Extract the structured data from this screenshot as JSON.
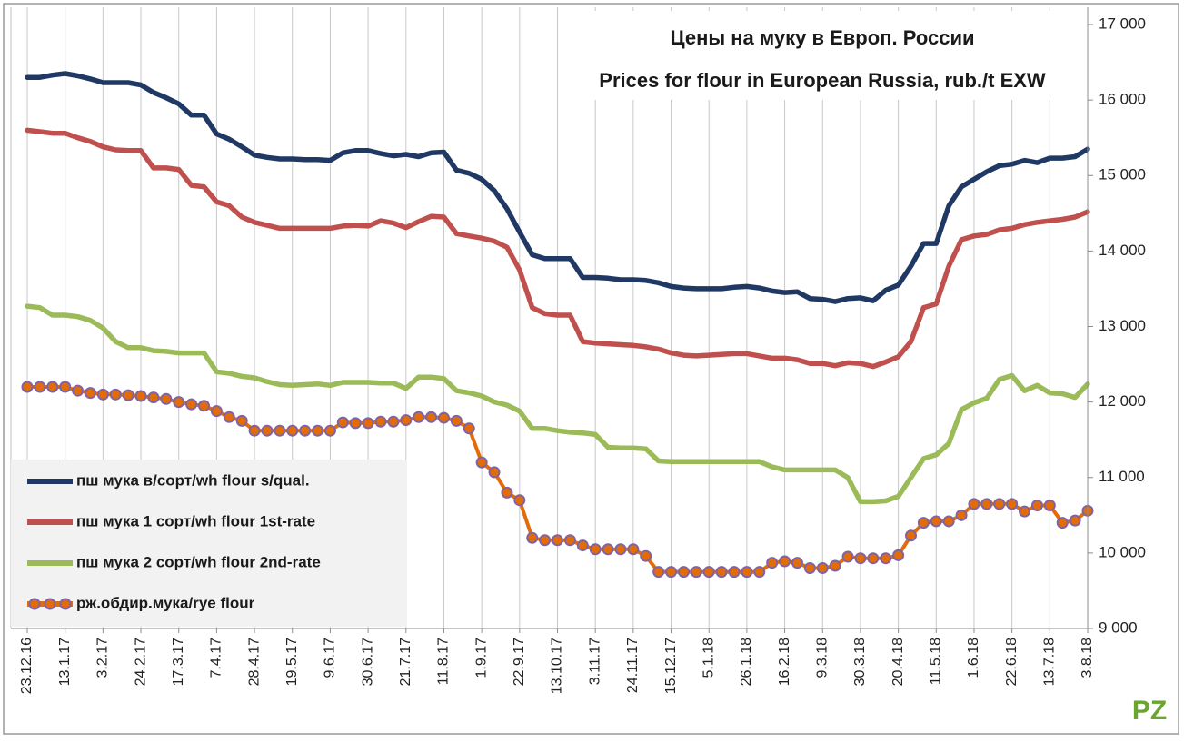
{
  "chart_data": {
    "type": "line",
    "title": "Цены на муку в Европ. России",
    "subtitle": "Prices for flour in European Russia, rub./t EXW",
    "logo": "PZ",
    "categories": [
      "23.12.16",
      null,
      null,
      "13.1.17",
      null,
      null,
      "3.2.17",
      null,
      null,
      "24.2.17",
      null,
      null,
      "17.3.17",
      null,
      null,
      "7.4.17",
      null,
      null,
      "28.4.17",
      null,
      null,
      "19.5.17",
      null,
      null,
      "9.6.17",
      null,
      null,
      "30.6.17",
      null,
      null,
      "21.7.17",
      null,
      null,
      "11.8.17",
      null,
      null,
      "1.9.17",
      null,
      null,
      "22.9.17",
      null,
      null,
      "13.10.17",
      null,
      null,
      "3.11.17",
      null,
      null,
      "24.11.17",
      null,
      null,
      "15.12.17",
      null,
      null,
      "5.1.18",
      null,
      null,
      "26.1.18",
      null,
      null,
      "16.2.18",
      null,
      null,
      "9.3.18",
      null,
      null,
      "30.3.18",
      null,
      null,
      "20.4.18",
      null,
      null,
      "11.5.18",
      null,
      null,
      "1.6.18",
      null,
      null,
      "22.6.18",
      null,
      null,
      "13.7.18",
      null,
      null,
      "3.8.18"
    ],
    "series": [
      {
        "name": "пш мука в/сорт/wh flour s/qual.",
        "color": "#1f3864",
        "markers": false,
        "values": [
          16300,
          16300,
          16330,
          16350,
          16320,
          16280,
          16230,
          16230,
          16230,
          16200,
          16100,
          16030,
          15950,
          15800,
          15800,
          15550,
          15480,
          15380,
          15270,
          15240,
          15220,
          15220,
          15210,
          15210,
          15200,
          15300,
          15330,
          15330,
          15290,
          15260,
          15280,
          15250,
          15300,
          15310,
          15070,
          15030,
          14950,
          14800,
          14560,
          14250,
          13950,
          13900,
          13900,
          13900,
          13650,
          13650,
          13640,
          13620,
          13620,
          13610,
          13580,
          13530,
          13510,
          13500,
          13500,
          13500,
          13520,
          13530,
          13510,
          13470,
          13450,
          13460,
          13370,
          13360,
          13330,
          13370,
          13380,
          13340,
          13480,
          13550,
          13800,
          14100,
          14100,
          14600,
          14850,
          14950,
          15050,
          15130,
          15150,
          15200,
          15170,
          15230,
          15230,
          15250,
          15350
        ]
      },
      {
        "name": "пш мука 1 сорт/wh flour 1st-rate",
        "color": "#c0504d",
        "markers": false,
        "values": [
          15600,
          15580,
          15560,
          15560,
          15500,
          15450,
          15380,
          15340,
          15330,
          15330,
          15100,
          15100,
          15080,
          14870,
          14850,
          14650,
          14600,
          14450,
          14380,
          14340,
          14300,
          14300,
          14300,
          14300,
          14300,
          14330,
          14340,
          14330,
          14400,
          14370,
          14310,
          14390,
          14460,
          14450,
          14230,
          14200,
          14170,
          14130,
          14050,
          13750,
          13250,
          13170,
          13150,
          13150,
          12800,
          12780,
          12770,
          12760,
          12750,
          12730,
          12700,
          12650,
          12620,
          12610,
          12620,
          12630,
          12640,
          12640,
          12610,
          12580,
          12580,
          12560,
          12510,
          12510,
          12480,
          12520,
          12510,
          12470,
          12530,
          12600,
          12800,
          13250,
          13300,
          13800,
          14150,
          14200,
          14220,
          14280,
          14300,
          14350,
          14380,
          14400,
          14420,
          14450,
          14520
        ]
      },
      {
        "name": "пш мука 2 сорт/wh flour 2nd-rate",
        "color": "#9bbb59",
        "markers": false,
        "values": [
          13270,
          13250,
          13150,
          13150,
          13130,
          13080,
          12980,
          12800,
          12720,
          12720,
          12680,
          12670,
          12650,
          12650,
          12650,
          12400,
          12380,
          12340,
          12320,
          12270,
          12230,
          12220,
          12230,
          12240,
          12220,
          12260,
          12260,
          12260,
          12250,
          12250,
          12180,
          12330,
          12330,
          12310,
          12150,
          12120,
          12080,
          12000,
          11960,
          11880,
          11650,
          11650,
          11620,
          11600,
          11590,
          11570,
          11400,
          11390,
          11390,
          11380,
          11220,
          11210,
          11210,
          11210,
          11210,
          11210,
          11210,
          11210,
          11210,
          11140,
          11100,
          11100,
          11100,
          11100,
          11100,
          11000,
          10680,
          10680,
          10690,
          10750,
          11000,
          11250,
          11300,
          11450,
          11900,
          11990,
          12050,
          12300,
          12350,
          12150,
          12220,
          12120,
          12110,
          12060,
          12240
        ]
      },
      {
        "name": "рж.обдир.мука/rye flour",
        "color": "#e36c09",
        "marker_color": "#8064a2",
        "markers": true,
        "values": [
          12200,
          12200,
          12200,
          12200,
          12150,
          12120,
          12100,
          12100,
          12090,
          12080,
          12060,
          12040,
          12000,
          11970,
          11950,
          11880,
          11800,
          11750,
          11620,
          11620,
          11620,
          11620,
          11620,
          11620,
          11620,
          11730,
          11720,
          11720,
          11740,
          11740,
          11760,
          11800,
          11800,
          11790,
          11750,
          11650,
          11200,
          11070,
          10800,
          10700,
          10200,
          10170,
          10170,
          10170,
          10100,
          10050,
          10050,
          10050,
          10050,
          9960,
          9750,
          9750,
          9750,
          9750,
          9750,
          9750,
          9750,
          9750,
          9750,
          9870,
          9890,
          9870,
          9800,
          9800,
          9830,
          9950,
          9930,
          9930,
          9930,
          9970,
          10230,
          10400,
          10420,
          10420,
          10500,
          10650,
          10650,
          10650,
          10650,
          10550,
          10630,
          10630,
          10400,
          10430,
          10560
        ]
      }
    ],
    "ylim": [
      9000,
      17000
    ],
    "yticks": [
      {
        "value": 9000,
        "label": "9 000"
      },
      {
        "value": 10000,
        "label": "10 000"
      },
      {
        "value": 11000,
        "label": "11 000"
      },
      {
        "value": 12000,
        "label": "12 000"
      },
      {
        "value": 13000,
        "label": "13 000"
      },
      {
        "value": 14000,
        "label": "14 000"
      },
      {
        "value": 15000,
        "label": "15 000"
      },
      {
        "value": 16000,
        "label": "16 000"
      },
      {
        "value": 17000,
        "label": "17 000"
      }
    ],
    "y_axis_side": "right",
    "grid": "x",
    "legend": "lower left"
  }
}
